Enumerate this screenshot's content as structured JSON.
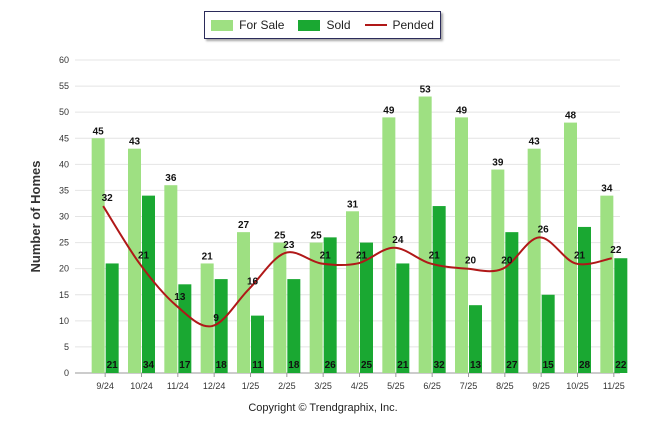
{
  "chart_data": {
    "type": "bar",
    "title": "",
    "xlabel": "",
    "ylabel": "Number of Homes",
    "ylim": [
      0,
      60
    ],
    "ytick_step": 5,
    "grid": true,
    "legend_position": "top-center",
    "categories": [
      "9/24",
      "10/24",
      "11/24",
      "12/24",
      "1/25",
      "2/25",
      "3/25",
      "4/25",
      "5/25",
      "6/25",
      "7/25",
      "8/25",
      "9/25",
      "10/25",
      "11/25"
    ],
    "series": [
      {
        "name": "For Sale",
        "type": "bar",
        "color": "#9ee082",
        "values": [
          45,
          43,
          36,
          21,
          27,
          25,
          25,
          31,
          49,
          53,
          49,
          39,
          43,
          48,
          34
        ]
      },
      {
        "name": "Sold",
        "type": "bar",
        "color": "#1aa832",
        "values": [
          21,
          34,
          17,
          18,
          11,
          18,
          26,
          25,
          21,
          32,
          13,
          27,
          15,
          28,
          22
        ]
      },
      {
        "name": "Pended",
        "type": "line",
        "color": "#b01818",
        "values": [
          32,
          21,
          13,
          9,
          16,
          23,
          21,
          21,
          24,
          21,
          20,
          20,
          26,
          21,
          22
        ]
      }
    ],
    "footer": "Copyright © Trendgraphix, Inc."
  }
}
